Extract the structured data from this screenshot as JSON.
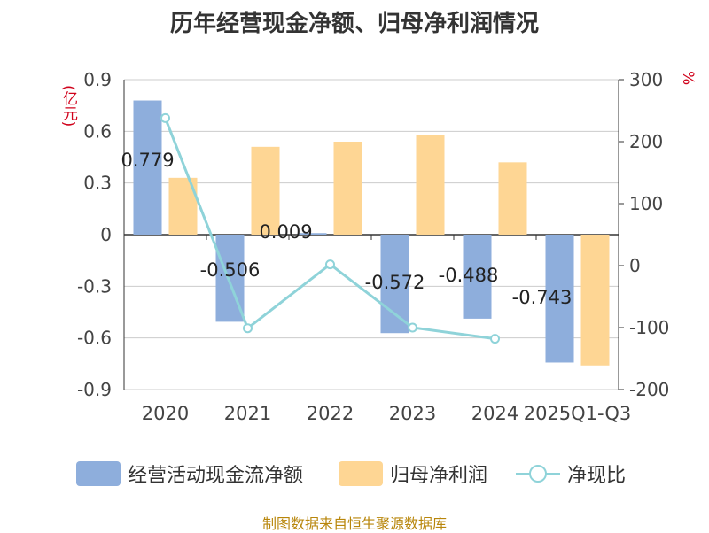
{
  "title": "历年经营现金净额、归母净利润情况",
  "unit_left": "(亿元)",
  "unit_right": "%",
  "source": "制图数据来自恒生聚源数据库",
  "colors": {
    "cashflow": "#8eaedc",
    "profit": "#fed694",
    "ratio": "#8fd3d9"
  },
  "legend": {
    "cashflow": "经营活动现金流净额",
    "profit": "归母净利润",
    "ratio": "净现比"
  },
  "chart_data": {
    "type": "bar",
    "title": "历年经营现金净额、归母净利润情况",
    "categories": [
      "2020",
      "2021",
      "2022",
      "2023",
      "2024",
      "2025Q1-Q3"
    ],
    "series": [
      {
        "name": "经营活动现金流净额",
        "type": "bar",
        "axis": "left",
        "values": [
          0.779,
          -0.506,
          0.009,
          -0.572,
          -0.488,
          -0.743
        ],
        "labels": [
          "0.779",
          "-0.506",
          "0.009",
          "-0.572",
          "-0.488",
          "-0.743"
        ]
      },
      {
        "name": "归母净利润",
        "type": "bar",
        "axis": "left",
        "values": [
          0.33,
          0.51,
          0.54,
          0.58,
          0.42,
          -0.76
        ]
      },
      {
        "name": "净现比",
        "type": "line",
        "axis": "right",
        "values": [
          238,
          -101,
          2,
          -100,
          -118,
          null
        ]
      }
    ],
    "y_left": {
      "label": "(亿元)",
      "min": -0.9,
      "max": 0.9,
      "ticks": [
        0.9,
        0.6,
        0.3,
        0,
        -0.3,
        -0.6,
        -0.9
      ]
    },
    "y_right": {
      "label": "%",
      "min": -200,
      "max": 300,
      "ticks": [
        300,
        200,
        100,
        0,
        -100,
        -200
      ]
    },
    "grid": true,
    "legend_position": "bottom"
  }
}
